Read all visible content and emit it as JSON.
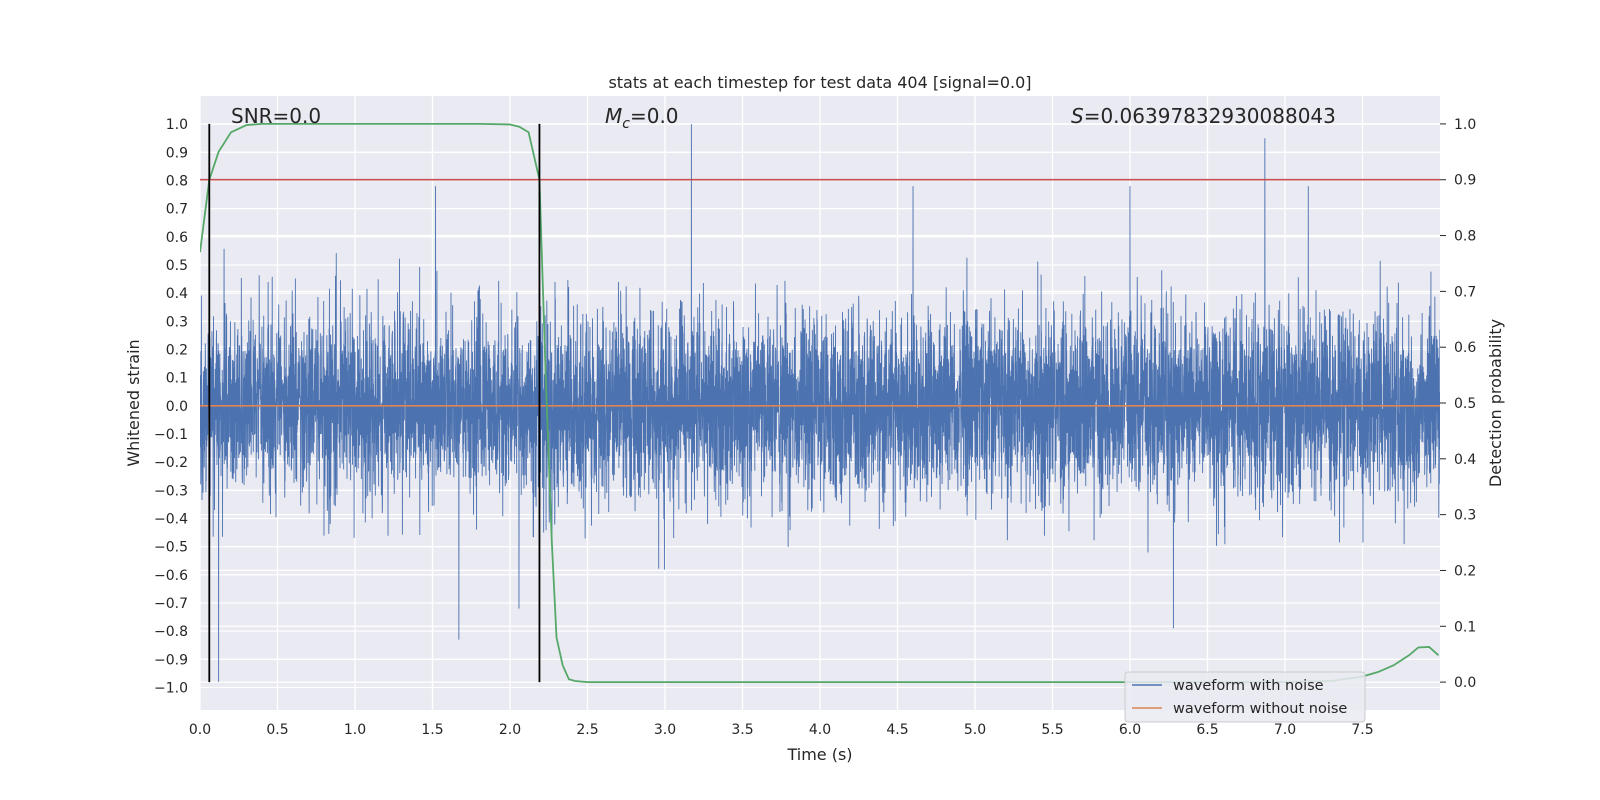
{
  "chart_data": {
    "type": "line",
    "title": "stats at each timestep for test data 404 [signal=0.0]",
    "xlabel": "Time (s)",
    "ylabel": "Whitened strain",
    "y2label": "Detection probability",
    "xlim": [
      0.0,
      8.0
    ],
    "ylim": [
      -1.08,
      1.1
    ],
    "y2lim": [
      -0.05,
      1.05
    ],
    "xticks": [
      0.0,
      0.5,
      1.0,
      1.5,
      2.0,
      2.5,
      3.0,
      3.5,
      4.0,
      4.5,
      5.0,
      5.5,
      6.0,
      6.5,
      7.0,
      7.5
    ],
    "xtick_labels": [
      "0.0",
      "0.5",
      "1.0",
      "1.5",
      "2.0",
      "2.5",
      "3.0",
      "3.5",
      "4.0",
      "4.5",
      "5.0",
      "5.5",
      "6.0",
      "6.5",
      "7.0",
      "7.5"
    ],
    "yticks": [
      -1.0,
      -0.9,
      -0.8,
      -0.7,
      -0.6,
      -0.5,
      -0.4,
      -0.3,
      -0.2,
      -0.1,
      0.0,
      0.1,
      0.2,
      0.3,
      0.4,
      0.5,
      0.6,
      0.7,
      0.8,
      0.9,
      1.0
    ],
    "ytick_labels": [
      "−1.0",
      "−0.9",
      "−0.8",
      "−0.7",
      "−0.6",
      "−0.5",
      "−0.4",
      "−0.3",
      "−0.2",
      "−0.1",
      "0.0",
      "0.1",
      "0.2",
      "0.3",
      "0.4",
      "0.5",
      "0.6",
      "0.7",
      "0.8",
      "0.9",
      "1.0"
    ],
    "y2ticks": [
      0.0,
      0.1,
      0.2,
      0.3,
      0.4,
      0.5,
      0.6,
      0.7,
      0.8,
      0.9,
      1.0
    ],
    "y2tick_labels": [
      "0.0",
      "0.1",
      "0.2",
      "0.3",
      "0.4",
      "0.5",
      "0.6",
      "0.7",
      "0.8",
      "0.9",
      "1.0"
    ],
    "grid": true,
    "legend_position": "bottom-right",
    "annotations": {
      "snr": "SNR=0.0",
      "mc_symbol": "M",
      "mc_sub": "c",
      "mc_value": "=0.0",
      "s_symbol": "S",
      "s_value": "=0.06397832930088043"
    },
    "threshold": {
      "axis": "y2",
      "value": 0.9,
      "color": "#c44e52"
    },
    "vlines": [
      0.06,
      2.19
    ],
    "series": [
      {
        "name": "waveform with noise",
        "axis": "y",
        "color": "#4c72b0",
        "kind": "noise",
        "sigma": 0.16,
        "samples": 8192,
        "peaks": [
          {
            "x": 3.17,
            "y": 1.0
          },
          {
            "x": 6.87,
            "y": 0.95
          },
          {
            "x": 0.12,
            "y": -0.98
          },
          {
            "x": 6.28,
            "y": -0.79
          },
          {
            "x": 1.67,
            "y": -0.83
          },
          {
            "x": 1.52,
            "y": 0.78
          },
          {
            "x": 4.6,
            "y": 0.78
          },
          {
            "x": 7.15,
            "y": 0.78
          },
          {
            "x": 6.0,
            "y": 0.78
          }
        ]
      },
      {
        "name": "waveform without noise",
        "axis": "y",
        "color": "#dd8452",
        "kind": "constant",
        "value": 0.0
      },
      {
        "name": "detection probability",
        "axis": "y2",
        "color": "#55a868",
        "kind": "line",
        "x": [
          0.0,
          0.06,
          0.12,
          0.2,
          0.3,
          0.4,
          0.5,
          0.7,
          1.0,
          1.5,
          1.8,
          2.0,
          2.06,
          2.12,
          2.19,
          2.23,
          2.27,
          2.3,
          2.34,
          2.38,
          2.42,
          2.5,
          3.0,
          4.0,
          5.0,
          6.0,
          6.5,
          7.0,
          7.3,
          7.5,
          7.6,
          7.7,
          7.8,
          7.86,
          7.93,
          7.99
        ],
        "values": [
          0.77,
          0.9,
          0.95,
          0.985,
          0.998,
          1.0,
          1.0,
          1.0,
          1.0,
          1.0,
          1.0,
          0.999,
          0.995,
          0.985,
          0.9,
          0.55,
          0.25,
          0.08,
          0.03,
          0.005,
          0.002,
          0.0,
          0.0,
          0.0,
          0.0,
          0.0,
          0.0,
          0.0,
          0.002,
          0.01,
          0.018,
          0.03,
          0.048,
          0.062,
          0.063,
          0.048
        ]
      }
    ]
  }
}
